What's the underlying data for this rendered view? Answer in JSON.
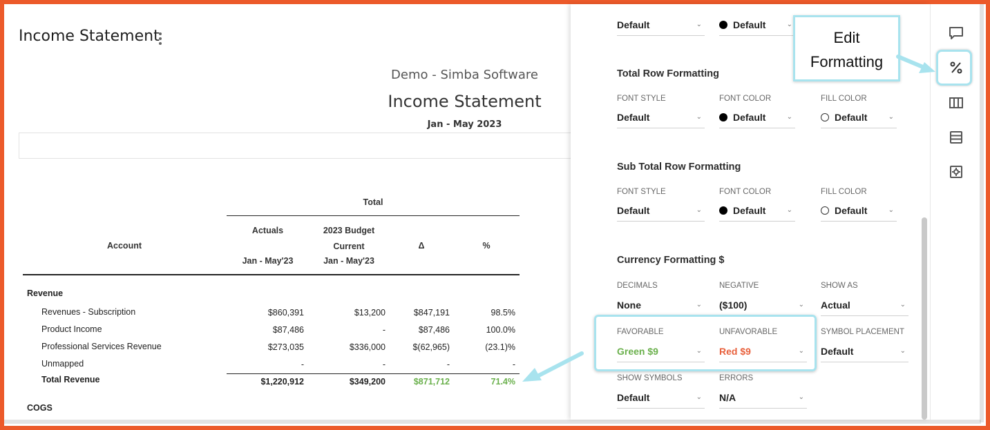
{
  "report": {
    "page_title": "Income Statement",
    "company": "Demo - Simba Software",
    "title": "Income Statement",
    "period": "Jan - May 2023",
    "columns": {
      "group": "Total",
      "account": "Account",
      "actuals_1": "Actuals",
      "actuals_2": "Jan - May'23",
      "budget_1": "2023 Budget",
      "budget_2": "Current",
      "budget_3": "Jan - May'23",
      "delta": "Δ",
      "pct": "%"
    },
    "sections": {
      "revenue": "Revenue",
      "cogs": "COGS"
    },
    "rows": [
      {
        "label": "Revenues - Subscription",
        "actuals": "$860,391",
        "budget": "$13,200",
        "delta": "$847,191",
        "pct": "98.5%"
      },
      {
        "label": "Product Income",
        "actuals": "$87,486",
        "budget": "-",
        "delta": "$87,486",
        "pct": "100.0%"
      },
      {
        "label": "Professional Services Revenue",
        "actuals": "$273,035",
        "budget": "$336,000",
        "delta": "$(62,965)",
        "pct": "(23.1)%"
      },
      {
        "label": "Unmapped",
        "actuals": "-",
        "budget": "-",
        "delta": "-",
        "pct": "-"
      }
    ],
    "total": {
      "label": "Total Revenue",
      "actuals": "$1,220,912",
      "budget": "$349,200",
      "delta": "$871,712",
      "pct": "71.4%"
    }
  },
  "panel": {
    "top_row": {
      "font_style": "Default",
      "font_color": "Default"
    },
    "total_row": {
      "title": "Total Row Formatting",
      "font_style_label": "FONT STYLE",
      "font_style": "Default",
      "font_color_label": "FONT COLOR",
      "font_color": "Default",
      "fill_color_label": "FILL COLOR",
      "fill_color": "Default"
    },
    "sub_total_row": {
      "title": "Sub Total Row Formatting",
      "font_style_label": "FONT STYLE",
      "font_style": "Default",
      "font_color_label": "FONT COLOR",
      "font_color": "Default",
      "fill_color_label": "FILL COLOR",
      "fill_color": "Default"
    },
    "currency": {
      "title": "Currency Formatting $",
      "decimals_label": "DECIMALS",
      "decimals": "None",
      "negative_label": "NEGATIVE",
      "negative": "($100)",
      "show_as_label": "SHOW AS",
      "show_as": "Actual",
      "favorable_label": "FAVORABLE",
      "favorable": "Green $9",
      "unfavorable_label": "UNFAVORABLE",
      "unfavorable": "Red $9",
      "symbol_placement_label": "SYMBOL PLACEMENT",
      "symbol_placement": "Default",
      "show_symbols_label": "SHOW SYMBOLS",
      "show_symbols": "Default",
      "errors_label": "ERRORS",
      "errors": "N/A"
    }
  },
  "callout": {
    "line1": "Edit",
    "line2": "Formatting"
  },
  "colors": {
    "accent_border": "#ec5a2a",
    "highlight": "#a8e3ee",
    "favorable": "#6ab04c",
    "unfavorable": "#e8603c"
  },
  "toolbar_icons": [
    "comment-icon",
    "percent-icon",
    "columns-icon",
    "rows-icon",
    "settings-icon"
  ]
}
